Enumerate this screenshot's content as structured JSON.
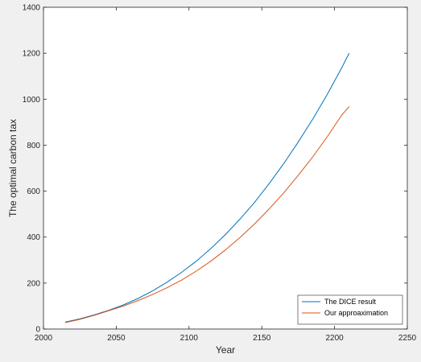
{
  "chart_data": {
    "type": "line",
    "xlabel": "Year",
    "ylabel": "The optimal carbon tax",
    "xlim": [
      2000,
      2250
    ],
    "ylim": [
      0,
      1400
    ],
    "xticks": [
      2000,
      2050,
      2100,
      2150,
      2200,
      2250
    ],
    "yticks": [
      0,
      200,
      400,
      600,
      800,
      1000,
      1200,
      1400
    ],
    "grid": false,
    "legend_position": "bottom-right",
    "series": [
      {
        "name": "The DICE result",
        "color": "#0072bd",
        "x": [
          2015,
          2025,
          2035,
          2045,
          2055,
          2065,
          2075,
          2085,
          2095,
          2105,
          2115,
          2125,
          2135,
          2145,
          2155,
          2165,
          2175,
          2185,
          2195,
          2205,
          2210
        ],
        "values": [
          30,
          44,
          62,
          82,
          105,
          133,
          166,
          204,
          247,
          295,
          350,
          411,
          478,
          551,
          632,
          719,
          813,
          913,
          1021,
          1137,
          1200
        ]
      },
      {
        "name": "Our approaximation",
        "color": "#d95319",
        "x": [
          2015,
          2025,
          2035,
          2045,
          2055,
          2065,
          2075,
          2085,
          2095,
          2105,
          2115,
          2125,
          2135,
          2145,
          2155,
          2165,
          2175,
          2185,
          2195,
          2205,
          2210
        ],
        "values": [
          28,
          42,
          60,
          80,
          100,
          124,
          150,
          180,
          213,
          252,
          295,
          344,
          398,
          457,
          522,
          592,
          668,
          749,
          837,
          931,
          968
        ]
      }
    ]
  }
}
